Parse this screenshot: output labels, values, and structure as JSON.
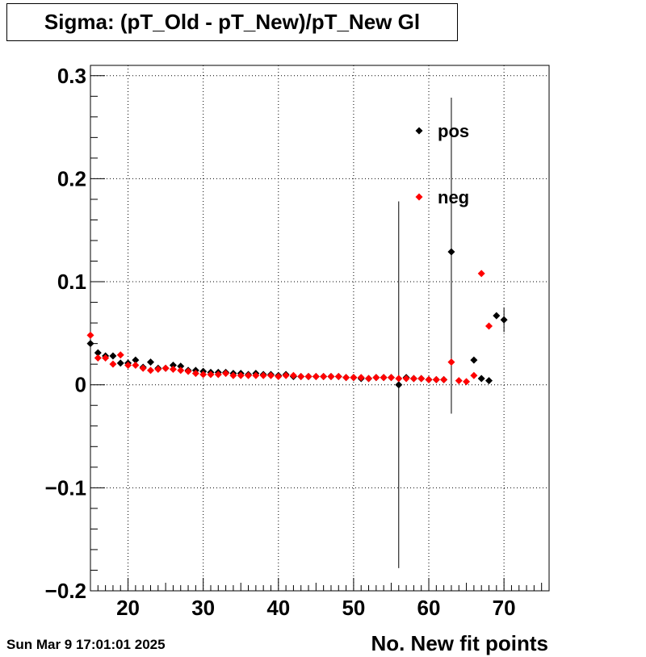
{
  "footer": {
    "datestamp": "Sun Mar  9 17:01:01 2025"
  },
  "chart_data": {
    "type": "scatter",
    "title": "Sigma: (pT_Old - pT_New)/pT_New Gl",
    "xlabel": "No. New fit points",
    "ylabel": "",
    "xlim": [
      15,
      76
    ],
    "ylim": [
      -0.2,
      0.31
    ],
    "grid": true,
    "legend_placement": "top-right",
    "xticks": [
      20,
      30,
      40,
      50,
      60,
      70
    ],
    "yticks": [
      {
        "value": -0.2,
        "label": "−0.2"
      },
      {
        "value": -0.1,
        "label": "−0.1"
      },
      {
        "value": 0,
        "label": "0"
      },
      {
        "value": 0.1,
        "label": "0.1"
      },
      {
        "value": 0.2,
        "label": "0.2"
      },
      {
        "value": 0.3,
        "label": "0.3"
      }
    ],
    "series": [
      {
        "name": "pos",
        "color": "#000000",
        "points": [
          {
            "x": 15,
            "y": 0.04
          },
          {
            "x": 16,
            "y": 0.031
          },
          {
            "x": 17,
            "y": 0.028
          },
          {
            "x": 18,
            "y": 0.028
          },
          {
            "x": 19,
            "y": 0.021
          },
          {
            "x": 20,
            "y": 0.021
          },
          {
            "x": 21,
            "y": 0.024
          },
          {
            "x": 22,
            "y": 0.017
          },
          {
            "x": 23,
            "y": 0.022
          },
          {
            "x": 24,
            "y": 0.016
          },
          {
            "x": 25,
            "y": 0.016
          },
          {
            "x": 26,
            "y": 0.019
          },
          {
            "x": 27,
            "y": 0.018
          },
          {
            "x": 28,
            "y": 0.014
          },
          {
            "x": 29,
            "y": 0.014
          },
          {
            "x": 30,
            "y": 0.013
          },
          {
            "x": 31,
            "y": 0.012
          },
          {
            "x": 32,
            "y": 0.012
          },
          {
            "x": 33,
            "y": 0.012
          },
          {
            "x": 34,
            "y": 0.011
          },
          {
            "x": 35,
            "y": 0.011
          },
          {
            "x": 36,
            "y": 0.01
          },
          {
            "x": 37,
            "y": 0.011
          },
          {
            "x": 38,
            "y": 0.01
          },
          {
            "x": 39,
            "y": 0.01
          },
          {
            "x": 40,
            "y": 0.009
          },
          {
            "x": 41,
            "y": 0.01
          },
          {
            "x": 42,
            "y": 0.008
          },
          {
            "x": 43,
            "y": 0.008
          },
          {
            "x": 44,
            "y": 0.008
          },
          {
            "x": 45,
            "y": 0.008
          },
          {
            "x": 46,
            "y": 0.008
          },
          {
            "x": 47,
            "y": 0.008
          },
          {
            "x": 48,
            "y": 0.008
          },
          {
            "x": 49,
            "y": 0.007
          },
          {
            "x": 50,
            "y": 0.007
          },
          {
            "x": 51,
            "y": 0.006
          },
          {
            "x": 52,
            "y": 0.006
          },
          {
            "x": 53,
            "y": 0.007
          },
          {
            "x": 54,
            "y": 0.007
          },
          {
            "x": 55,
            "y": 0.007
          },
          {
            "x": 56,
            "y": 0.0,
            "err": 0.178
          },
          {
            "x": 57,
            "y": 0.007
          },
          {
            "x": 58,
            "y": 0.006
          },
          {
            "x": 59,
            "y": 0.006
          },
          {
            "x": 60,
            "y": 0.005
          },
          {
            "x": 61,
            "y": 0.005
          },
          {
            "x": 62,
            "y": 0.005
          },
          {
            "x": 63,
            "y": 0.129,
            "err": 0.157
          },
          {
            "x": 66,
            "y": 0.024
          },
          {
            "x": 67,
            "y": 0.006
          },
          {
            "x": 68,
            "y": 0.004
          },
          {
            "x": 69,
            "y": 0.067
          },
          {
            "x": 70,
            "y": 0.063,
            "err": 0.012
          }
        ]
      },
      {
        "name": "neg",
        "color": "#ff0000",
        "points": [
          {
            "x": 15,
            "y": 0.048
          },
          {
            "x": 16,
            "y": 0.026
          },
          {
            "x": 17,
            "y": 0.026
          },
          {
            "x": 18,
            "y": 0.02
          },
          {
            "x": 19,
            "y": 0.029
          },
          {
            "x": 20,
            "y": 0.019
          },
          {
            "x": 21,
            "y": 0.019
          },
          {
            "x": 22,
            "y": 0.016
          },
          {
            "x": 23,
            "y": 0.014
          },
          {
            "x": 24,
            "y": 0.015
          },
          {
            "x": 25,
            "y": 0.016
          },
          {
            "x": 26,
            "y": 0.015
          },
          {
            "x": 27,
            "y": 0.014
          },
          {
            "x": 28,
            "y": 0.013
          },
          {
            "x": 29,
            "y": 0.011
          },
          {
            "x": 30,
            "y": 0.01
          },
          {
            "x": 31,
            "y": 0.01
          },
          {
            "x": 32,
            "y": 0.01
          },
          {
            "x": 33,
            "y": 0.011
          },
          {
            "x": 34,
            "y": 0.009
          },
          {
            "x": 35,
            "y": 0.009
          },
          {
            "x": 36,
            "y": 0.009
          },
          {
            "x": 37,
            "y": 0.009
          },
          {
            "x": 38,
            "y": 0.009
          },
          {
            "x": 39,
            "y": 0.009
          },
          {
            "x": 40,
            "y": 0.008
          },
          {
            "x": 41,
            "y": 0.009
          },
          {
            "x": 42,
            "y": 0.009
          },
          {
            "x": 43,
            "y": 0.008
          },
          {
            "x": 44,
            "y": 0.008
          },
          {
            "x": 45,
            "y": 0.008
          },
          {
            "x": 46,
            "y": 0.008
          },
          {
            "x": 47,
            "y": 0.008
          },
          {
            "x": 48,
            "y": 0.008
          },
          {
            "x": 49,
            "y": 0.007
          },
          {
            "x": 50,
            "y": 0.007
          },
          {
            "x": 51,
            "y": 0.007
          },
          {
            "x": 52,
            "y": 0.006
          },
          {
            "x": 53,
            "y": 0.007
          },
          {
            "x": 54,
            "y": 0.007
          },
          {
            "x": 55,
            "y": 0.007
          },
          {
            "x": 56,
            "y": 0.006
          },
          {
            "x": 57,
            "y": 0.006
          },
          {
            "x": 58,
            "y": 0.006
          },
          {
            "x": 59,
            "y": 0.006
          },
          {
            "x": 60,
            "y": 0.005
          },
          {
            "x": 61,
            "y": 0.005
          },
          {
            "x": 62,
            "y": 0.005
          },
          {
            "x": 63,
            "y": 0.022
          },
          {
            "x": 64,
            "y": 0.004
          },
          {
            "x": 65,
            "y": 0.003
          },
          {
            "x": 66,
            "y": 0.009
          },
          {
            "x": 67,
            "y": 0.108
          },
          {
            "x": 68,
            "y": 0.057
          }
        ]
      }
    ]
  }
}
